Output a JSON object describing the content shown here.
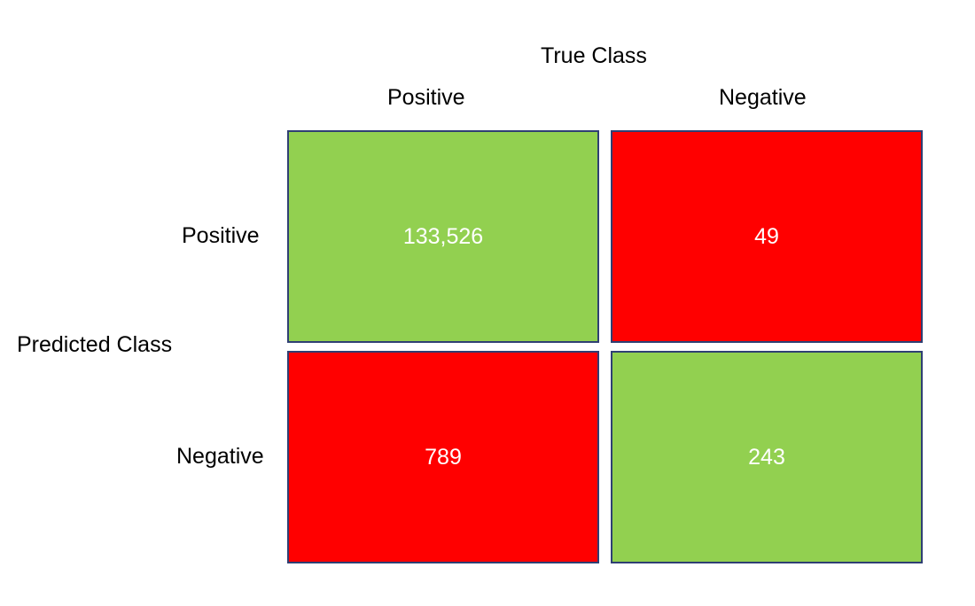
{
  "header": {
    "true_class": "True Class",
    "columns": [
      "Positive",
      "Negative"
    ]
  },
  "side": {
    "predicted_class": "Predicted Class",
    "rows": [
      "Positive",
      "Negative"
    ]
  },
  "matrix": {
    "cells": [
      {
        "value": "133,526",
        "color": "#92d050"
      },
      {
        "value": "49",
        "color": "#ff0000"
      },
      {
        "value": "789",
        "color": "#ff0000"
      },
      {
        "value": "243",
        "color": "#92d050"
      }
    ]
  }
}
